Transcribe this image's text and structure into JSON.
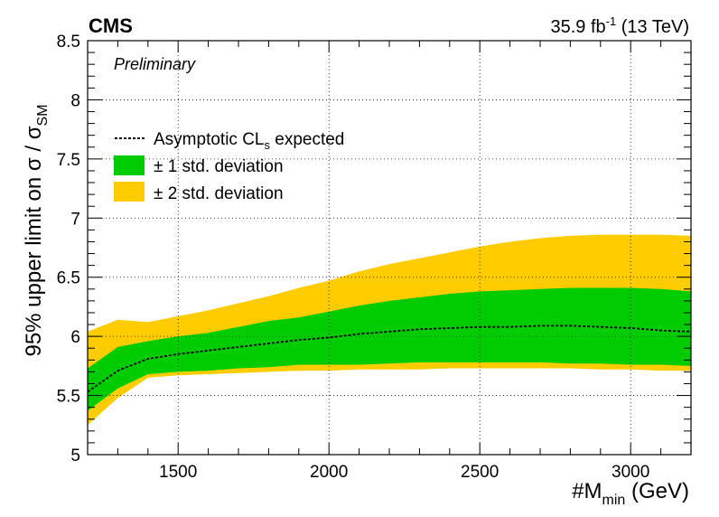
{
  "header": {
    "experiment": "CMS",
    "status": "Preliminary",
    "lumi_value": "35.9 fb",
    "lumi_exponent": "-1",
    "lumi_energy": " (13 TeV)"
  },
  "legend": {
    "placement": "top-left",
    "expected_prefix": "Asymptotic CL",
    "expected_subscript": "s",
    "expected_suffix": " expected",
    "one_sigma": "± 1 std. deviation",
    "two_sigma": "± 2 std. deviation"
  },
  "axes": {
    "x_label_prefix": "#M",
    "x_label_subscript": "min",
    "x_label_suffix": " (GeV)",
    "y_label_prefix": "95% upper limit on σ / σ",
    "y_label_subscript": "SM"
  },
  "colors": {
    "one_sigma": "#00cc00",
    "two_sigma": "#ffcc00",
    "expected": "#000000",
    "grid": "#000000"
  },
  "chart_data": {
    "type": "area",
    "xlim": [
      1200,
      3200
    ],
    "ylim": [
      5,
      8.5
    ],
    "grid": true,
    "x_ticks": [
      1500,
      2000,
      2500,
      3000
    ],
    "x_tick_labels": [
      "1500",
      "2000",
      "2500",
      "3000"
    ],
    "y_ticks": [
      5,
      5.5,
      6,
      6.5,
      7,
      7.5,
      8,
      8.5
    ],
    "y_tick_labels": [
      "5",
      "5.5",
      "6",
      "6.5",
      "7",
      "7.5",
      "8",
      "8.5"
    ],
    "x": [
      1200,
      1300,
      1400,
      1500,
      1600,
      1700,
      1800,
      1900,
      2000,
      2100,
      2200,
      2300,
      2400,
      2500,
      2600,
      2700,
      2800,
      2900,
      3000,
      3100,
      3200
    ],
    "expected": [
      5.53,
      5.71,
      5.81,
      5.85,
      5.88,
      5.91,
      5.94,
      5.97,
      5.99,
      6.02,
      6.04,
      6.06,
      6.07,
      6.08,
      6.08,
      6.09,
      6.09,
      6.08,
      6.07,
      6.05,
      6.04
    ],
    "one_sigma_low": [
      5.37,
      5.56,
      5.68,
      5.7,
      5.71,
      5.73,
      5.74,
      5.76,
      5.76,
      5.76,
      5.77,
      5.78,
      5.78,
      5.78,
      5.78,
      5.78,
      5.77,
      5.77,
      5.76,
      5.76,
      5.75
    ],
    "one_sigma_high": [
      5.73,
      5.91,
      5.96,
      6.0,
      6.03,
      6.08,
      6.13,
      6.16,
      6.21,
      6.26,
      6.3,
      6.33,
      6.36,
      6.38,
      6.39,
      6.4,
      6.41,
      6.41,
      6.41,
      6.4,
      6.38
    ],
    "two_sigma_low": [
      5.25,
      5.48,
      5.65,
      5.67,
      5.68,
      5.69,
      5.7,
      5.71,
      5.71,
      5.72,
      5.72,
      5.72,
      5.73,
      5.73,
      5.73,
      5.73,
      5.73,
      5.72,
      5.72,
      5.71,
      5.71
    ],
    "two_sigma_high": [
      6.04,
      6.14,
      6.12,
      6.17,
      6.22,
      6.28,
      6.34,
      6.41,
      6.47,
      6.55,
      6.61,
      6.66,
      6.71,
      6.76,
      6.8,
      6.83,
      6.85,
      6.86,
      6.86,
      6.86,
      6.85
    ]
  }
}
